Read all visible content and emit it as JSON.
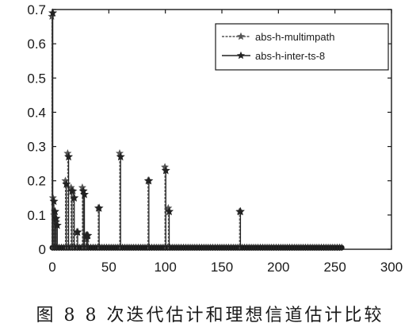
{
  "caption": "图 8   8 次迭代估计和理想信道估计比较",
  "chart_data": {
    "type": "scatter",
    "style": "stem",
    "title": "",
    "xlabel": "",
    "ylabel": "",
    "xlim": [
      0,
      300
    ],
    "ylim": [
      0,
      0.7
    ],
    "xticks": [
      "0",
      "50",
      "100",
      "150",
      "200",
      "250",
      "300"
    ],
    "yticks": [
      "0",
      "0.1",
      "0.2",
      "0.3",
      "0.4",
      "0.5",
      "0.6",
      "0.7"
    ],
    "grid": false,
    "legend_position": "top-right",
    "series": [
      {
        "name": "abs-h-multimpath",
        "color": "#555555",
        "x": [
          0,
          1,
          2,
          3,
          4,
          12,
          14,
          17,
          19,
          22,
          27,
          28,
          30,
          31,
          41,
          60,
          85,
          100,
          103,
          166
        ],
        "values": [
          0.68,
          0.15,
          0.1,
          0.09,
          0.08,
          0.2,
          0.28,
          0.18,
          0.17,
          0.05,
          0.18,
          0.17,
          0.04,
          0.03,
          0.12,
          0.28,
          0.2,
          0.24,
          0.12,
          0.11
        ]
      },
      {
        "name": "abs-h-inter-ts-8",
        "color": "#222222",
        "x": [
          0,
          1,
          2,
          3,
          4,
          12,
          14,
          17,
          19,
          22,
          27,
          28,
          30,
          31,
          41,
          60,
          85,
          100,
          103,
          166
        ],
        "values": [
          0.69,
          0.14,
          0.11,
          0.09,
          0.07,
          0.19,
          0.27,
          0.17,
          0.15,
          0.05,
          0.17,
          0.16,
          0.04,
          0.04,
          0.12,
          0.27,
          0.2,
          0.23,
          0.11,
          0.11
        ]
      }
    ],
    "baseline": {
      "x_start": 0,
      "x_end": 256,
      "value": 0
    }
  },
  "icons": {
    "marker": "star-marker"
  }
}
